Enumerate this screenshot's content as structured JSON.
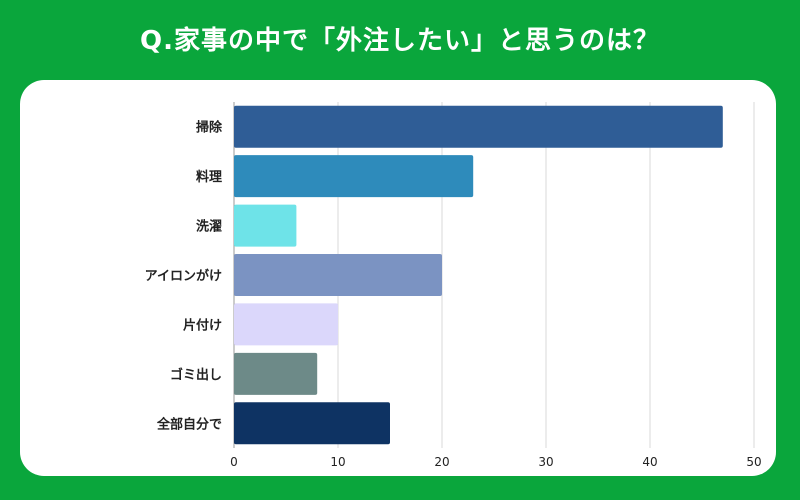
{
  "title": "Q.家事の中で「外注したい」と思うのは？",
  "chart_data": {
    "type": "bar",
    "orientation": "horizontal",
    "title": "Q.家事の中で「外注したい」と思うのは？",
    "categories": [
      "掃除",
      "料理",
      "洗濯",
      "アイロンがけ",
      "片付け",
      "ゴミ出し",
      "全部自分で"
    ],
    "values": [
      47,
      23,
      6,
      20,
      10,
      8,
      15
    ],
    "colors": [
      "#2f5d96",
      "#2e8bbb",
      "#6ee3e8",
      "#7b93c2",
      "#dbd7fb",
      "#6d8a88",
      "#0e3363"
    ],
    "xlim": [
      0,
      50
    ],
    "xticks": [
      0,
      10,
      20,
      30,
      40,
      50
    ],
    "grid": true,
    "xlabel": "",
    "ylabel": ""
  }
}
